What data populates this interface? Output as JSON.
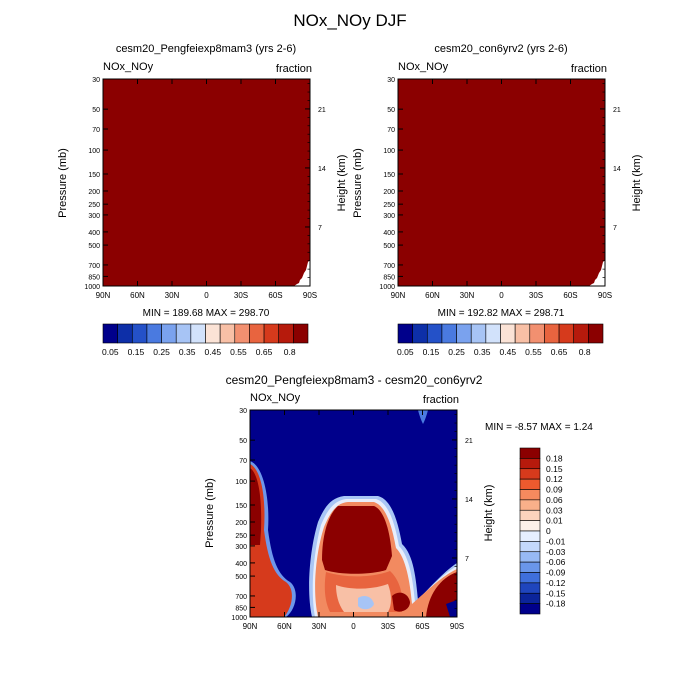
{
  "figure": {
    "title": "NOx_NOy DJF"
  },
  "chart_data": [
    {
      "type": "heatmap",
      "title": "cesm20_Pengfeiexp8mam3 (yrs 2-6)",
      "left_label": "NOx_NOy",
      "right_label": "fraction",
      "ylabel": "Pressure (mb)",
      "ylabel_right": "Height (km)",
      "x_ticks": [
        "90N",
        "60N",
        "30N",
        "0",
        "30S",
        "60S",
        "90S"
      ],
      "y_ticks": [
        "30",
        "50",
        "70",
        "100",
        "150",
        "200",
        "250",
        "300",
        "400",
        "500",
        "700",
        "850",
        "1000"
      ],
      "y_ticks_right": [
        "21",
        "14",
        "7"
      ],
      "stats": "MIN = 189.68   MAX = 298.70",
      "fill": "#8b0000"
    },
    {
      "type": "heatmap",
      "title": "cesm20_con6yrv2 (yrs 2-6)",
      "left_label": "NOx_NOy",
      "right_label": "fraction",
      "ylabel": "Pressure (mb)",
      "ylabel_right": "Height (km)",
      "x_ticks": [
        "90N",
        "60N",
        "30N",
        "0",
        "30S",
        "60S",
        "90S"
      ],
      "y_ticks": [
        "30",
        "50",
        "70",
        "100",
        "150",
        "200",
        "250",
        "300",
        "400",
        "500",
        "700",
        "850",
        "1000"
      ],
      "y_ticks_right": [
        "21",
        "14",
        "7"
      ],
      "stats": "MIN = 192.82   MAX = 298.71",
      "fill": "#8b0000"
    },
    {
      "type": "heatmap",
      "title": "cesm20_Pengfeiexp8mam3 - cesm20_con6yrv2",
      "left_label": "NOx_NOy",
      "right_label": "fraction",
      "ylabel": "Pressure (mb)",
      "ylabel_right": "Height (km)",
      "x_ticks": [
        "90N",
        "60N",
        "30N",
        "0",
        "30S",
        "60S",
        "90S"
      ],
      "y_ticks": [
        "30",
        "50",
        "70",
        "100",
        "150",
        "200",
        "250",
        "300",
        "400",
        "500",
        "700",
        "850",
        "1000"
      ],
      "y_ticks_right": [
        "21",
        "14",
        "7"
      ],
      "stats": "MIN =  -8.57   MAX =   1.24",
      "background": "#00008b"
    }
  ],
  "colorbars": {
    "top": {
      "labels": [
        "0.05",
        "0.15",
        "0.25",
        "0.35",
        "0.45",
        "0.55",
        "0.65",
        "0.8"
      ],
      "colors": [
        "#00008b",
        "#0d2fa8",
        "#2451c8",
        "#4a7ae0",
        "#7aa2ee",
        "#a7c4f5",
        "#d2e2fb",
        "#fbe3d6",
        "#f8c0a6",
        "#f29070",
        "#e8643f",
        "#d63a1c",
        "#b61a0c",
        "#8b0000"
      ]
    },
    "bottom": {
      "labels": [
        "0.18",
        "0.15",
        "0.12",
        "0.09",
        "0.06",
        "0.03",
        "0.01",
        "0",
        "-0.01",
        "-0.03",
        "-0.06",
        "-0.09",
        "-0.12",
        "-0.15",
        "-0.18"
      ],
      "colors": [
        "#8b0000",
        "#b61a0c",
        "#d63a1c",
        "#ed5a2e",
        "#f58a5e",
        "#f9b08a",
        "#fbd3bd",
        "#fdf0e8",
        "#e6efff",
        "#c4d8fb",
        "#97b9f4",
        "#6a96ea",
        "#3f6fdc",
        "#1f45bd",
        "#0b249a",
        "#00008b"
      ]
    }
  }
}
